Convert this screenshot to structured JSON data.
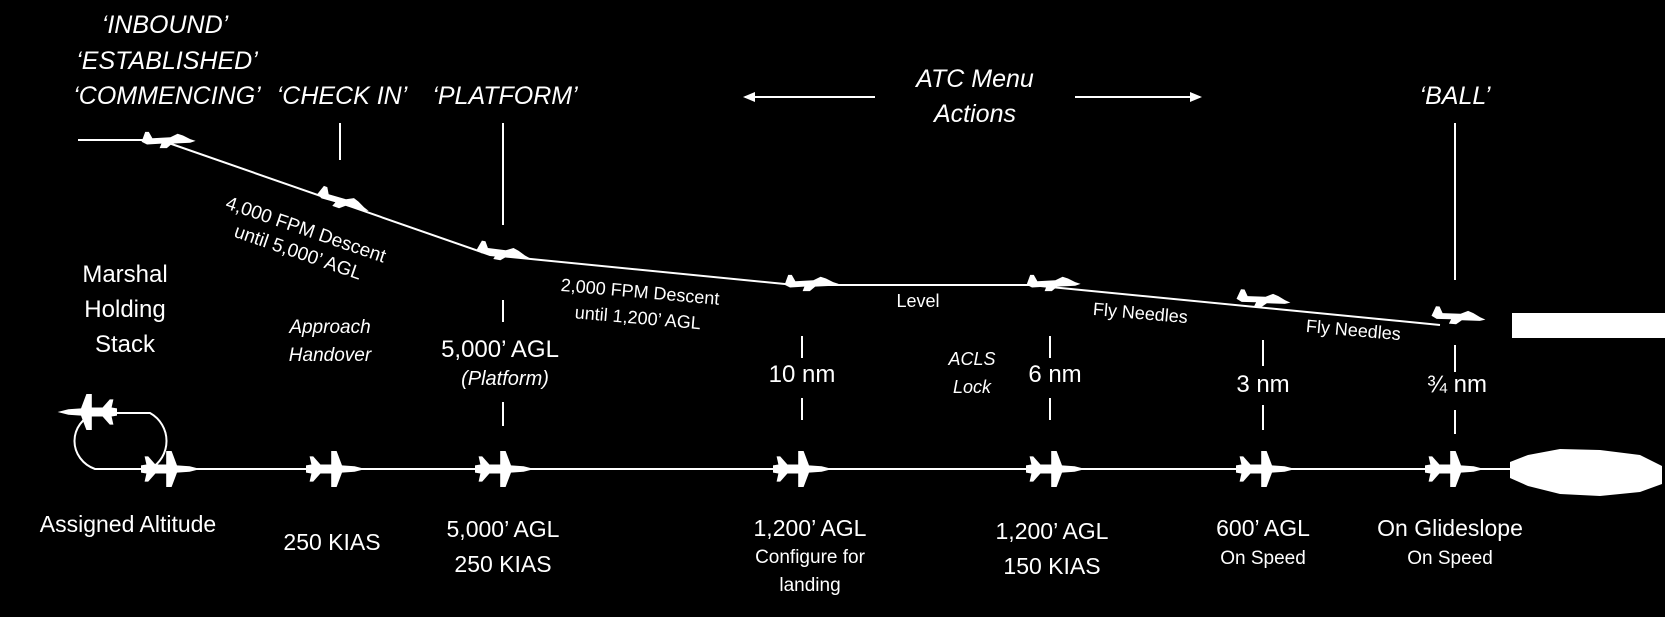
{
  "calls": {
    "inbound": "‘INBOUND’",
    "established": "‘ESTABLISHED’",
    "commencing": "‘COMMENCING’",
    "check_in": "‘CHECK IN’",
    "platform": "‘PLATFORM’",
    "ball": "‘BALL’"
  },
  "atc_menu": {
    "line1": "ATC Menu",
    "line2": "Actions"
  },
  "profile_labels": {
    "descent_4000_line1": "4,000 FPM Descent",
    "descent_4000_line2": "until 5,000’ AGL",
    "descent_2000_line1": "2,000 FPM Descent",
    "descent_2000_line2": "until 1,200’ AGL",
    "level": "Level",
    "fly_needles_1": "Fly Needles",
    "fly_needles_2": "Fly Needles"
  },
  "marshal": {
    "line1": "Marshal",
    "line2": "Holding",
    "line3": "Stack"
  },
  "approach_handover": {
    "line1": "Approach",
    "line2": "Handover"
  },
  "platform_point": {
    "altitude": "5,000’ AGL",
    "note": "(Platform)"
  },
  "acls_lock": {
    "line1": "ACLS",
    "line2": "Lock"
  },
  "distances": {
    "d10": "10 nm",
    "d6": "6 nm",
    "d3": "3 nm",
    "d075": "¾ nm"
  },
  "bottom": {
    "assigned": "Assigned Altitude",
    "kias250": "250 KIAS",
    "p3_line1": "5,000’ AGL",
    "p3_line2": "250 KIAS",
    "p4_line1": "1,200’ AGL",
    "p4_line2": "Configure for",
    "p4_line3": "landing",
    "p5_line1": "1,200’ AGL",
    "p5_line2": "150 KIAS",
    "p6_line1": "600’ AGL",
    "p6_line2": "On Speed",
    "p7_line1": "On Glideslope",
    "p7_line2": "On Speed"
  },
  "icons": {
    "jet": "fighter-jet-icon",
    "carrier": "aircraft-carrier-icon"
  },
  "colors": {
    "background": "#000000",
    "foreground": "#ffffff"
  }
}
